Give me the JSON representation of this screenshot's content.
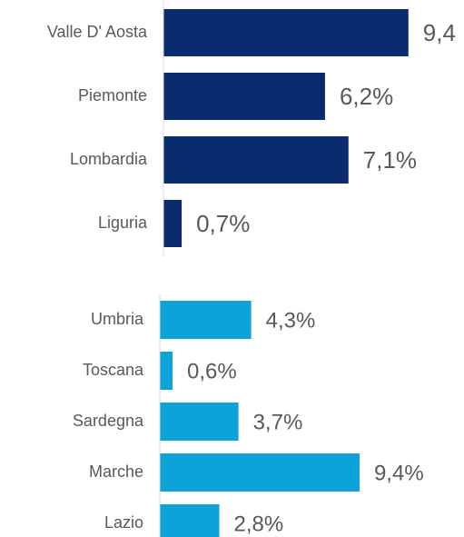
{
  "chart_data": [
    {
      "type": "barh",
      "categories": [
        "Valle D' Aosta",
        "Piemonte",
        "Lombardia",
        "Liguria"
      ],
      "values": [
        9.4,
        6.2,
        7.1,
        0.7
      ],
      "value_labels": [
        "9,4",
        "6,2%",
        "7,1%",
        "0,7%"
      ],
      "color": "#0b2b6f"
    },
    {
      "type": "barh",
      "categories": [
        "Umbria",
        "Toscana",
        "Sardegna",
        "Marche",
        "Lazio"
      ],
      "values": [
        4.3,
        0.6,
        3.7,
        9.4,
        2.8
      ],
      "value_labels": [
        "4,3%",
        "0,6%",
        "3,7%",
        "9,4%",
        "2,8%"
      ],
      "color": "#0ca3d8"
    }
  ]
}
